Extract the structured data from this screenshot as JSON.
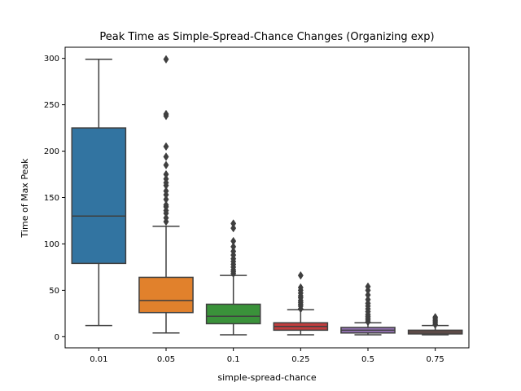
{
  "chart_data": {
    "type": "box",
    "title": "Peak Time as Simple-Spread-Chance Changes (Organizing exp)",
    "xlabel": "simple-spread-chance",
    "ylabel": "Time of Max Peak",
    "categories": [
      "0.01",
      "0.05",
      "0.1",
      "0.25",
      "0.5",
      "0.75"
    ],
    "ylim": [
      -12,
      312
    ],
    "yticks": [
      0,
      50,
      100,
      150,
      200,
      250,
      300
    ],
    "grid": false,
    "boxes": [
      {
        "category": "0.01",
        "color": "#3274a1",
        "whisker_low": 12,
        "q1": 79,
        "median": 130,
        "q3": 225,
        "whisker_high": 299,
        "outliers": []
      },
      {
        "category": "0.05",
        "color": "#e1812c",
        "whisker_low": 4,
        "q1": 26,
        "median": 39,
        "q3": 64,
        "whisker_high": 119,
        "outliers": [
          124,
          128,
          133,
          136,
          140,
          142,
          148,
          153,
          157,
          163,
          166,
          170,
          175,
          185,
          194,
          205,
          238,
          240,
          299
        ]
      },
      {
        "category": "0.1",
        "color": "#3a923a",
        "whisker_low": 2,
        "q1": 14,
        "median": 22,
        "q3": 35,
        "whisker_high": 66,
        "outliers": [
          68,
          70,
          72,
          75,
          78,
          81,
          84,
          88,
          92,
          97,
          103,
          117,
          122
        ]
      },
      {
        "category": "0.25",
        "color": "#c03d3e",
        "whisker_low": 2,
        "q1": 7,
        "median": 11,
        "q3": 15,
        "whisker_high": 29,
        "outliers": [
          30,
          33,
          35,
          37,
          39,
          42,
          44,
          47,
          50,
          53,
          66
        ]
      },
      {
        "category": "0.5",
        "color": "#9372b2",
        "whisker_low": 2,
        "q1": 4,
        "median": 7,
        "q3": 10,
        "whisker_high": 15,
        "outliers": [
          16,
          18,
          20,
          22,
          24,
          27,
          30,
          33,
          36,
          40,
          45,
          50,
          54
        ]
      },
      {
        "category": "0.75",
        "color": "#845b53",
        "whisker_low": 2,
        "q1": 3,
        "median": 5,
        "q3": 7,
        "whisker_high": 12,
        "outliers": [
          13,
          15,
          17,
          19,
          21
        ]
      }
    ]
  }
}
